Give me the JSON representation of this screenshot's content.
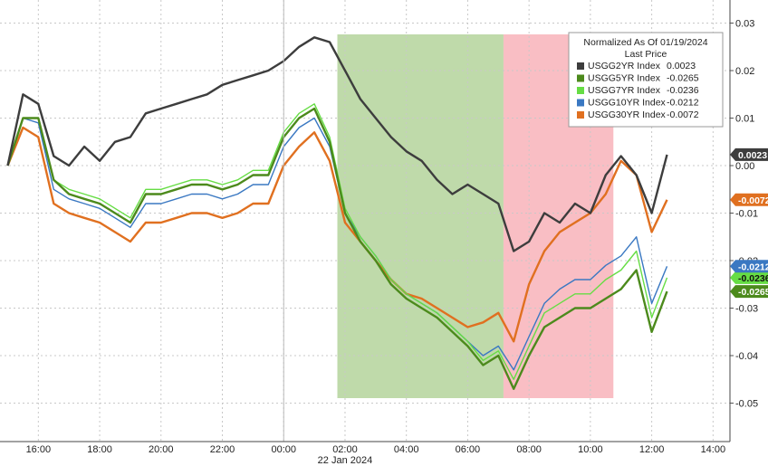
{
  "chart_data": {
    "type": "line",
    "x": [
      "15:00",
      "15:30",
      "16:00",
      "16:30",
      "17:00",
      "17:30",
      "18:00",
      "18:30",
      "19:00",
      "19:30",
      "20:00",
      "20:30",
      "21:00",
      "21:30",
      "22:00",
      "22:30",
      "23:00",
      "23:30",
      "00:00",
      "00:30",
      "01:00",
      "01:30",
      "02:00",
      "02:30",
      "03:00",
      "03:30",
      "04:00",
      "04:30",
      "05:00",
      "05:30",
      "06:00",
      "06:30",
      "07:00",
      "07:30",
      "08:00",
      "08:30",
      "09:00",
      "09:30",
      "10:00",
      "10:30",
      "11:00",
      "11:30",
      "12:00",
      "12:30"
    ],
    "x_ticks": [
      "16:00",
      "18:00",
      "20:00",
      "22:00",
      "00:00",
      "02:00",
      "04:00",
      "06:00",
      "08:00",
      "10:00",
      "12:00",
      "14:00"
    ],
    "date_label": "22 Jan 2024",
    "y_ticks": [
      "0.03",
      "0.02",
      "0.01",
      "0.00",
      "-0.01",
      "-0.02",
      "-0.03",
      "-0.04",
      "-0.05"
    ],
    "ylim": [
      -0.053,
      0.032
    ],
    "grid": true,
    "legend_title": "Normalized As Of 01/19/2024",
    "legend_subtitle": "Last Price",
    "legend_position": "top-right",
    "series": [
      {
        "name": "USGG2YR Index",
        "last": "0.0023",
        "last_value": 0.0023,
        "color": "#3d3d3d",
        "values": [
          0.0,
          0.015,
          0.013,
          0.002,
          0.0,
          0.004,
          0.001,
          0.005,
          0.006,
          0.011,
          0.012,
          0.013,
          0.014,
          0.015,
          0.017,
          0.018,
          0.019,
          0.02,
          0.022,
          0.025,
          0.027,
          0.026,
          0.02,
          0.014,
          0.01,
          0.006,
          0.003,
          0.001,
          -0.003,
          -0.006,
          -0.004,
          -0.006,
          -0.008,
          -0.018,
          -0.016,
          -0.01,
          -0.012,
          -0.008,
          -0.01,
          -0.002,
          0.002,
          -0.002,
          -0.01,
          0.0023
        ]
      },
      {
        "name": "USGG5YR Index",
        "last": "-0.0265",
        "last_value": -0.0265,
        "color": "#4c8a1c",
        "values": [
          0.0,
          0.01,
          0.01,
          -0.003,
          -0.006,
          -0.007,
          -0.008,
          -0.01,
          -0.012,
          -0.006,
          -0.006,
          -0.005,
          -0.004,
          -0.004,
          -0.005,
          -0.004,
          -0.002,
          -0.002,
          0.006,
          0.01,
          0.012,
          0.005,
          -0.01,
          -0.016,
          -0.02,
          -0.025,
          -0.028,
          -0.03,
          -0.032,
          -0.035,
          -0.038,
          -0.042,
          -0.04,
          -0.047,
          -0.04,
          -0.034,
          -0.032,
          -0.03,
          -0.03,
          -0.028,
          -0.026,
          -0.022,
          -0.035,
          -0.0265
        ]
      },
      {
        "name": "USGG7YR Index",
        "last": "-0.0236",
        "last_value": -0.0236,
        "color": "#66dd44",
        "values": [
          0.0,
          0.01,
          0.01,
          -0.003,
          -0.005,
          -0.006,
          -0.007,
          -0.009,
          -0.011,
          -0.005,
          -0.005,
          -0.004,
          -0.003,
          -0.003,
          -0.004,
          -0.003,
          -0.001,
          -0.001,
          0.007,
          0.011,
          0.013,
          0.006,
          -0.009,
          -0.015,
          -0.019,
          -0.024,
          -0.027,
          -0.029,
          -0.031,
          -0.034,
          -0.037,
          -0.041,
          -0.039,
          -0.045,
          -0.038,
          -0.031,
          -0.029,
          -0.027,
          -0.027,
          -0.024,
          -0.022,
          -0.018,
          -0.032,
          -0.0236
        ]
      },
      {
        "name": "USGG10YR Index",
        "last": "-0.0212",
        "last_value": -0.0212,
        "color": "#3a78c2",
        "values": [
          0.0,
          0.01,
          0.009,
          -0.005,
          -0.007,
          -0.008,
          -0.009,
          -0.011,
          -0.013,
          -0.008,
          -0.008,
          -0.007,
          -0.006,
          -0.006,
          -0.007,
          -0.006,
          -0.004,
          -0.004,
          0.004,
          0.008,
          0.01,
          0.004,
          -0.01,
          -0.015,
          -0.019,
          -0.024,
          -0.027,
          -0.029,
          -0.031,
          -0.034,
          -0.037,
          -0.04,
          -0.038,
          -0.043,
          -0.036,
          -0.029,
          -0.026,
          -0.024,
          -0.024,
          -0.021,
          -0.019,
          -0.015,
          -0.029,
          -0.0212
        ]
      },
      {
        "name": "USGG30YR Index",
        "last": "-0.0072",
        "last_value": -0.0072,
        "color": "#e07020",
        "values": [
          0.0,
          0.008,
          0.006,
          -0.008,
          -0.01,
          -0.011,
          -0.012,
          -0.014,
          -0.016,
          -0.012,
          -0.012,
          -0.011,
          -0.01,
          -0.01,
          -0.011,
          -0.01,
          -0.008,
          -0.008,
          0.0,
          0.004,
          0.007,
          0.001,
          -0.012,
          -0.016,
          -0.02,
          -0.024,
          -0.027,
          -0.028,
          -0.03,
          -0.032,
          -0.034,
          -0.033,
          -0.031,
          -0.037,
          -0.025,
          -0.018,
          -0.014,
          -0.012,
          -0.01,
          -0.006,
          0.001,
          -0.002,
          -0.014,
          -0.0072
        ]
      }
    ],
    "shaded_regions": [
      {
        "from": "01:45",
        "to": "07:10",
        "color": "#a9cd8d"
      },
      {
        "from": "07:10",
        "to": "10:45",
        "color": "#f7a8b0"
      }
    ]
  }
}
